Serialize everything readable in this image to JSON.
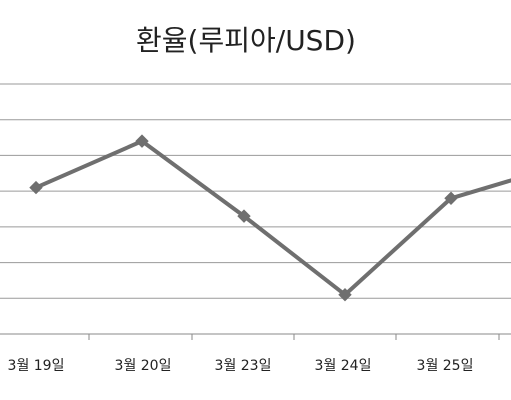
{
  "chart_data": {
    "type": "line",
    "title": "환율(루피아/USD)",
    "xlabel": "",
    "ylabel": "",
    "categories": [
      "3월 19일",
      "3월 20일",
      "3월 23일",
      "3월 24일",
      "3월 25일"
    ],
    "series": [
      {
        "values": [
          4.1,
          5.4,
          3.3,
          1.1,
          3.8
        ]
      }
    ],
    "ylim": [
      0,
      7
    ],
    "grid": true,
    "legend": "none",
    "line_color": "#6f6f6f",
    "grid_color": "#9a9a9a"
  }
}
